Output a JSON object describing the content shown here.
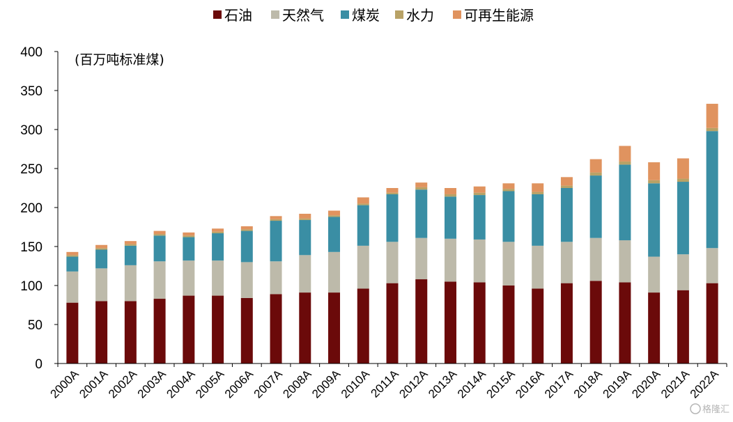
{
  "chart_data": {
    "type": "bar",
    "stacked": true,
    "unit_label": "(百万吨标准煤)",
    "categories": [
      "2000A",
      "2001A",
      "2002A",
      "2003A",
      "2004A",
      "2005A",
      "2006A",
      "2007A",
      "2008A",
      "2009A",
      "2010A",
      "2011A",
      "2012A",
      "2013A",
      "2014A",
      "2015A",
      "2016A",
      "2017A",
      "2018A",
      "2019A",
      "2020A",
      "2021A",
      "2022A"
    ],
    "ylim": [
      0,
      400
    ],
    "yticks": [
      0,
      50,
      100,
      150,
      200,
      250,
      300,
      350,
      400
    ],
    "legend_position": "top",
    "series": [
      {
        "name": "石油",
        "color": "#6b0a0a",
        "values": [
          78,
          80,
          80,
          83,
          87,
          87,
          84,
          89,
          91,
          91,
          96,
          103,
          108,
          105,
          104,
          100,
          96,
          103,
          106,
          104,
          91,
          94,
          103
        ]
      },
      {
        "name": "天然气",
        "color": "#bdbaaa",
        "values": [
          40,
          42,
          46,
          48,
          45,
          45,
          46,
          42,
          48,
          52,
          55,
          53,
          53,
          55,
          55,
          56,
          55,
          53,
          55,
          54,
          46,
          46,
          45
        ]
      },
      {
        "name": "煤炭",
        "color": "#3a8ea4",
        "values": [
          19,
          24,
          25,
          33,
          30,
          35,
          40,
          52,
          45,
          45,
          52,
          61,
          62,
          54,
          57,
          65,
          66,
          69,
          80,
          97,
          94,
          93,
          150
        ]
      },
      {
        "name": "水力",
        "color": "#b8a266",
        "values": [
          2,
          2,
          2,
          2,
          2,
          2,
          2,
          2,
          2,
          2,
          2,
          2,
          3,
          3,
          3,
          3,
          3,
          3,
          4,
          4,
          4,
          4,
          4
        ]
      },
      {
        "name": "可再生能源",
        "color": "#e0935f",
        "values": [
          4,
          4,
          4,
          4,
          4,
          4,
          4,
          4,
          6,
          6,
          8,
          6,
          6,
          8,
          8,
          7,
          11,
          11,
          17,
          20,
          23,
          26,
          31
        ]
      }
    ]
  },
  "watermark": "格隆汇"
}
